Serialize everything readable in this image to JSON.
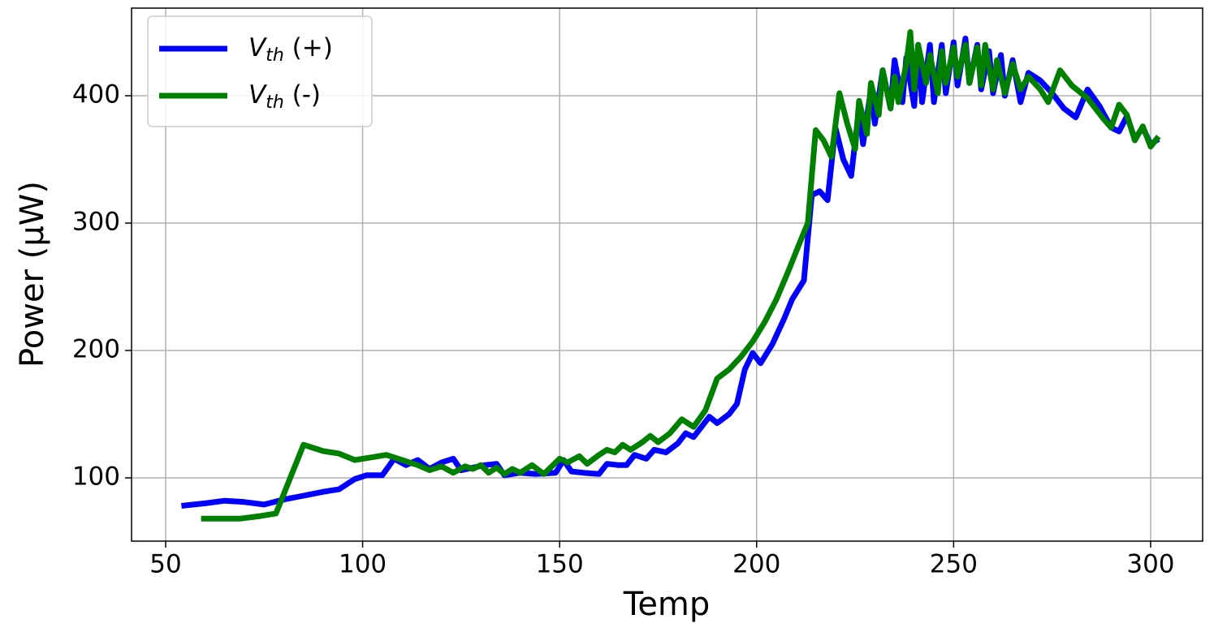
{
  "chart_data": {
    "type": "line",
    "xlabel": "Temp",
    "ylabel": "Power (μW)",
    "xlim": [
      41.35,
      313.2
    ],
    "ylim": [
      50.3,
      468.8
    ],
    "xticks": [
      50,
      100,
      150,
      200,
      250,
      300
    ],
    "yticks": [
      100,
      200,
      300,
      400
    ],
    "grid": true,
    "legend": "upper left",
    "series": [
      {
        "name": "Vth (+)",
        "color": "#0000ff",
        "x": [
          54,
          60,
          65,
          70,
          75,
          80,
          85,
          90,
          94,
          98,
          101,
          105,
          108,
          111,
          114,
          117,
          120,
          123,
          125,
          128,
          131,
          134,
          136,
          140,
          144,
          149,
          151,
          153,
          156,
          160,
          162,
          165,
          167,
          169,
          172,
          174,
          177,
          180,
          182,
          184,
          186,
          188,
          190,
          193,
          195,
          197,
          199,
          201,
          204,
          207,
          209,
          212,
          214,
          216,
          218,
          220,
          222,
          224,
          226,
          227,
          229,
          230,
          232,
          234,
          235,
          237,
          238,
          240,
          241,
          242,
          244,
          245,
          247,
          248,
          250,
          251,
          253,
          254,
          256,
          257,
          259,
          260,
          262,
          263,
          265,
          267,
          269,
          272,
          275,
          278,
          281,
          284,
          287,
          290,
          292,
          294,
          296,
          298,
          300,
          302
        ],
        "values": [
          78,
          80,
          82,
          81,
          79,
          83,
          86,
          89,
          91,
          99,
          102,
          102,
          115,
          110,
          114,
          107,
          112,
          115,
          106,
          108,
          110,
          111,
          102,
          104,
          103,
          104,
          114,
          105,
          104,
          103,
          111,
          110,
          110,
          118,
          115,
          122,
          120,
          127,
          135,
          132,
          140,
          148,
          143,
          150,
          158,
          185,
          198,
          190,
          205,
          225,
          240,
          255,
          322,
          325,
          318,
          375,
          350,
          337,
          390,
          362,
          405,
          378,
          420,
          390,
          428,
          395,
          430,
          392,
          440,
          395,
          440,
          395,
          440,
          402,
          442,
          408,
          445,
          410,
          440,
          405,
          435,
          402,
          432,
          400,
          428,
          395,
          418,
          412,
          402,
          390,
          383,
          405,
          392,
          375,
          372,
          384,
          366,
          375,
          362,
          366
        ]
      },
      {
        "name": "Vth (-)",
        "color": "#008000",
        "x": [
          59,
          64,
          69,
          74,
          78,
          85,
          90,
          94,
          98,
          102,
          106,
          110,
          114,
          117,
          120,
          123,
          126,
          128,
          130,
          132,
          134,
          136,
          138,
          140,
          143,
          146,
          150,
          152,
          155,
          157,
          160,
          162,
          164,
          166,
          168,
          171,
          173,
          175,
          178,
          181,
          184,
          187,
          190,
          193,
          196,
          199,
          202,
          205,
          208,
          211,
          213,
          215,
          217,
          219,
          221,
          223,
          225,
          226,
          228,
          229,
          231,
          232,
          234,
          235,
          236,
          238,
          239,
          240,
          241,
          243,
          244,
          246,
          247,
          248,
          250,
          251,
          253,
          254,
          256,
          257,
          258,
          260,
          261,
          263,
          265,
          267,
          269,
          272,
          274,
          277,
          280,
          284,
          288,
          290,
          292,
          294,
          296,
          298,
          300,
          302
        ],
        "values": [
          68,
          68,
          68,
          70,
          72,
          126,
          121,
          119,
          114,
          116,
          118,
          114,
          110,
          106,
          109,
          104,
          109,
          107,
          110,
          104,
          108,
          103,
          107,
          104,
          110,
          103,
          115,
          112,
          117,
          111,
          118,
          122,
          120,
          126,
          122,
          128,
          133,
          128,
          135,
          146,
          140,
          153,
          178,
          185,
          195,
          207,
          222,
          240,
          262,
          285,
          300,
          373,
          365,
          352,
          402,
          378,
          358,
          396,
          370,
          410,
          385,
          420,
          390,
          415,
          395,
          425,
          450,
          405,
          440,
          410,
          432,
          402,
          435,
          410,
          438,
          415,
          440,
          410,
          438,
          408,
          440,
          405,
          428,
          402,
          425,
          405,
          415,
          405,
          395,
          420,
          408,
          398,
          382,
          375,
          393,
          385,
          365,
          376,
          360,
          368
        ]
      }
    ]
  }
}
